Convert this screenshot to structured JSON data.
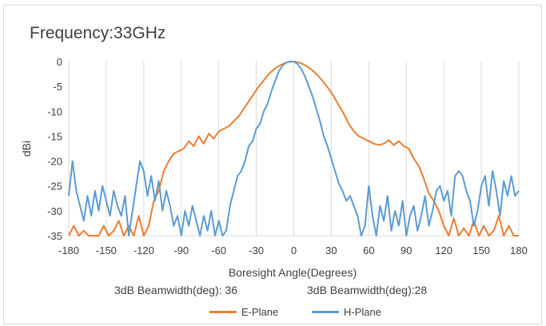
{
  "chart_data": {
    "type": "line",
    "title": "Frequency:33GHz",
    "xlabel": "Boresight Angle(Degrees)",
    "ylabel": "dBi",
    "xlim": [
      -180,
      180
    ],
    "ylim": [
      -35,
      0
    ],
    "x_ticks": [
      "-180",
      "-150",
      "-120",
      "-90",
      "-60",
      "-30",
      "0",
      "30",
      "60",
      "90",
      "120",
      "150",
      "180"
    ],
    "y_ticks": [
      "0",
      "-5",
      "-10",
      "-15",
      "-20",
      "-25",
      "-30",
      "-35"
    ],
    "grid": "vertical",
    "legend_position": "bottom",
    "annotations": [
      "3dB Beamwidth(deg): 36",
      "3dB Beamwidth(deg):28"
    ],
    "series": [
      {
        "name": "E-Plane",
        "color": "#ED7D31",
        "x": [
          -180,
          -176,
          -172,
          -168,
          -164,
          -160,
          -156,
          -152,
          -148,
          -144,
          -140,
          -136,
          -132,
          -128,
          -124,
          -120,
          -116,
          -112,
          -108,
          -104,
          -100,
          -96,
          -92,
          -88,
          -84,
          -80,
          -76,
          -72,
          -68,
          -64,
          -60,
          -56,
          -52,
          -48,
          -44,
          -40,
          -36,
          -32,
          -28,
          -24,
          -20,
          -16,
          -12,
          -8,
          -4,
          0,
          4,
          8,
          12,
          16,
          20,
          24,
          28,
          32,
          36,
          40,
          44,
          48,
          52,
          56,
          60,
          64,
          68,
          72,
          76,
          80,
          84,
          88,
          92,
          96,
          100,
          104,
          108,
          112,
          116,
          120,
          124,
          128,
          132,
          136,
          140,
          144,
          148,
          152,
          156,
          160,
          164,
          168,
          172,
          176,
          180
        ],
        "y": [
          -35,
          -33,
          -35,
          -34,
          -35,
          -35,
          -35,
          -33,
          -35,
          -34,
          -32,
          -35,
          -33,
          -35,
          -31,
          -35,
          -33,
          -28,
          -26,
          -22,
          -20,
          -18.5,
          -18,
          -17.5,
          -16,
          -17,
          -15,
          -16.5,
          -14.5,
          -15.5,
          -14,
          -13.5,
          -13,
          -12,
          -11,
          -9.5,
          -8,
          -6.5,
          -5,
          -3.8,
          -2.5,
          -1.6,
          -0.9,
          -0.4,
          -0.1,
          0,
          -0.2,
          -0.6,
          -1.2,
          -2,
          -3,
          -4.2,
          -5.5,
          -7,
          -8.8,
          -10.5,
          -12.5,
          -14,
          -15,
          -15.5,
          -16,
          -16.5,
          -16.8,
          -16.5,
          -15.8,
          -16.8,
          -16,
          -17,
          -17.5,
          -19.5,
          -21,
          -23.5,
          -26.5,
          -28,
          -30,
          -33,
          -35,
          -31.5,
          -35,
          -33.5,
          -35,
          -32,
          -35,
          -33,
          -35,
          -34,
          -31,
          -35,
          -33,
          -35,
          -35
        ]
      },
      {
        "name": "H-Plane",
        "color": "#5B9BD5",
        "x": [
          -180,
          -177,
          -174,
          -171,
          -168,
          -165,
          -162,
          -159,
          -156,
          -153,
          -150,
          -147,
          -144,
          -141,
          -138,
          -135,
          -132,
          -129,
          -126,
          -123,
          -120,
          -117,
          -114,
          -111,
          -108,
          -105,
          -102,
          -99,
          -96,
          -93,
          -90,
          -87,
          -84,
          -81,
          -78,
          -75,
          -72,
          -69,
          -66,
          -63,
          -60,
          -57,
          -54,
          -51,
          -48,
          -45,
          -42,
          -39,
          -36,
          -33,
          -30,
          -27,
          -24,
          -21,
          -18,
          -15,
          -12,
          -9,
          -6,
          -3,
          0,
          3,
          6,
          9,
          12,
          15,
          18,
          21,
          24,
          27,
          30,
          33,
          36,
          39,
          42,
          45,
          48,
          51,
          54,
          57,
          60,
          63,
          66,
          69,
          72,
          75,
          78,
          81,
          84,
          87,
          90,
          93,
          96,
          99,
          102,
          105,
          108,
          111,
          114,
          117,
          120,
          123,
          126,
          129,
          132,
          135,
          138,
          141,
          144,
          147,
          150,
          153,
          156,
          159,
          162,
          165,
          168,
          171,
          174,
          177,
          180
        ],
        "y": [
          -27,
          -20,
          -26,
          -29,
          -32,
          -27,
          -31,
          -26,
          -30,
          -25,
          -28,
          -31,
          -26,
          -29,
          -31,
          -27,
          -35,
          -30,
          -25,
          -20,
          -22,
          -27,
          -23,
          -28,
          -24,
          -30,
          -26,
          -29,
          -33,
          -31,
          -35,
          -30,
          -33,
          -29,
          -32,
          -35,
          -31,
          -34,
          -30,
          -35,
          -32,
          -35,
          -34,
          -29,
          -26,
          -23,
          -22,
          -20,
          -17,
          -16,
          -13.5,
          -12.5,
          -10,
          -8.5,
          -6,
          -4,
          -2,
          -0.8,
          -0.2,
          0,
          0,
          -0.5,
          -1.5,
          -3,
          -5,
          -7,
          -9.5,
          -12,
          -15,
          -17,
          -19.5,
          -22,
          -24.5,
          -26,
          -28,
          -27,
          -29,
          -31,
          -35,
          -33,
          -25,
          -31,
          -35,
          -29,
          -32,
          -27,
          -34,
          -30,
          -33,
          -28,
          -35,
          -31,
          -29,
          -34,
          -31,
          -27,
          -33,
          -30,
          -26,
          -25,
          -28,
          -26,
          -31,
          -23,
          -22,
          -23,
          -26,
          -28,
          -33,
          -30,
          -25,
          -23,
          -29,
          -22,
          -26,
          -31,
          -24,
          -27,
          -23,
          -27,
          -26
        ]
      }
    ]
  }
}
